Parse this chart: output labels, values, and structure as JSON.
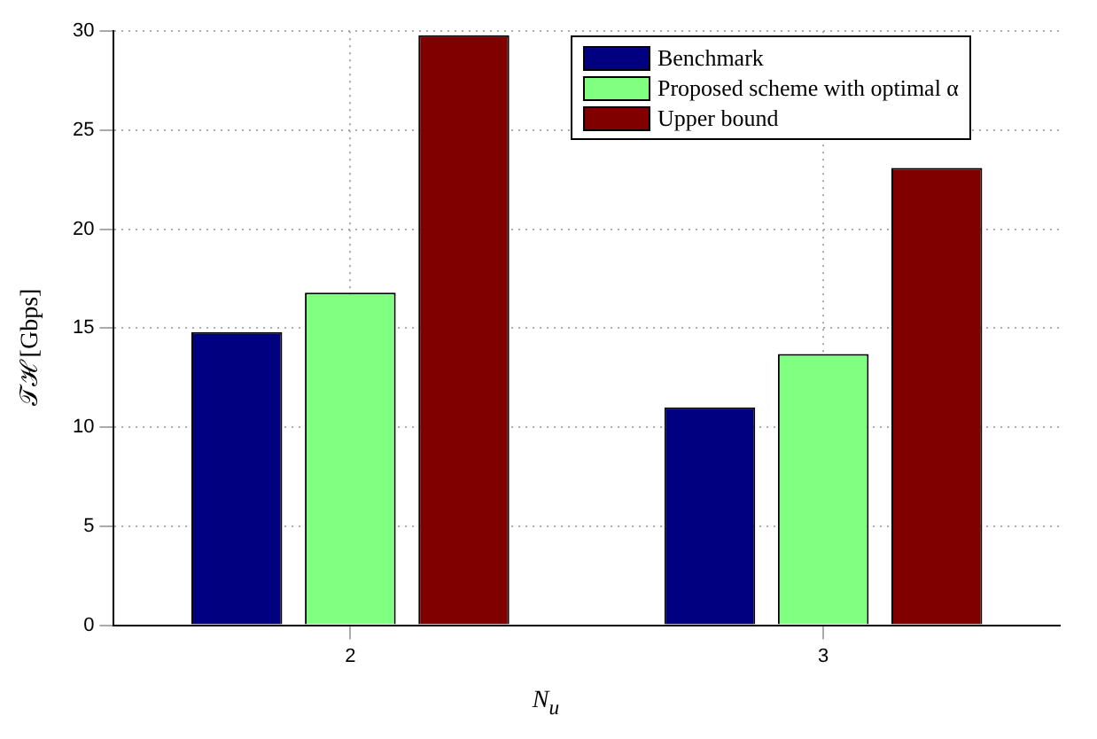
{
  "chart_data": {
    "type": "bar",
    "xlabel": "N$_{u}$",
    "ylabel": "𝒯ℋ [Gbps]",
    "categories": [
      "2",
      "3"
    ],
    "series": [
      {
        "name": "Benchmark",
        "color": "#000080",
        "values": [
          14.8,
          11.0
        ]
      },
      {
        "name": "Proposed scheme with optimal α",
        "color": "#80ff80",
        "values": [
          16.8,
          13.7
        ]
      },
      {
        "name": "Upper bound",
        "color": "#800000",
        "values": [
          29.8,
          23.1
        ]
      }
    ],
    "ylim": [
      0,
      30
    ],
    "yticks": [
      0,
      5,
      10,
      15,
      20,
      25,
      30
    ],
    "grid": true,
    "legend": "top right"
  }
}
